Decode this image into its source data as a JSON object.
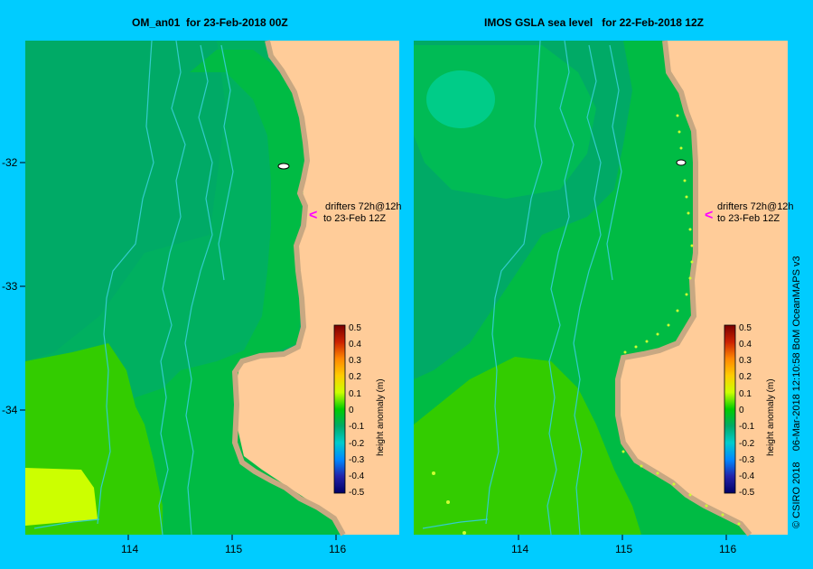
{
  "panels": [
    {
      "title": "OM_an01  for 23-Feb-2018 00Z"
    },
    {
      "title": "IMOS GSLA sea level   for 22-Feb-2018 12Z"
    }
  ],
  "annotation": {
    "line1": "drifters 72h@12h",
    "line2": "to 23-Feb 12Z",
    "arrow": "<"
  },
  "x_ticks": [
    "114",
    "115",
    "116"
  ],
  "y_ticks": [
    "-32",
    "-33",
    "-34"
  ],
  "colorbar": {
    "label": "height anomaly (m)",
    "ticks": [
      "0.5",
      "0.4",
      "0.3",
      "0.2",
      "0.1",
      "0",
      "-0.1",
      "-0.2",
      "-0.3",
      "-0.4",
      "-0.5"
    ]
  },
  "credit": "© CSIRO 2018    06-Mar-2018 12:10:58 BoM OceanMAPS v3",
  "colors": {
    "background": "#00ccff",
    "land": "#ffcc99",
    "coast": "#c8a882",
    "drifter_track": "#33cccc",
    "arrow": "#ff00ff"
  }
}
